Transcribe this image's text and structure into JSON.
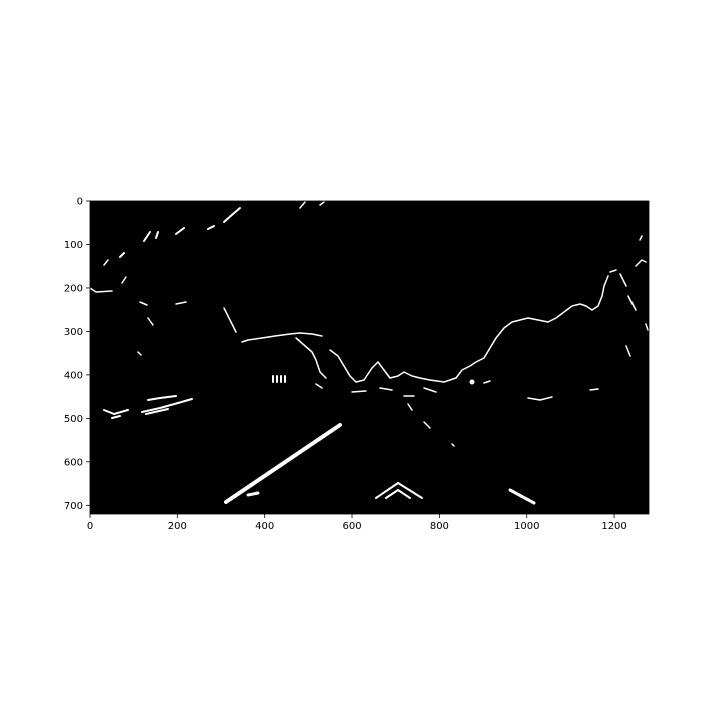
{
  "figure": {
    "background": "#ffffff",
    "image_background": "#000000",
    "edge_color": "#ffffff"
  },
  "chart_data": {
    "type": "image",
    "xlim": [
      0,
      1280
    ],
    "ylim": [
      720,
      0
    ],
    "x_ticks": [
      0,
      200,
      400,
      600,
      800,
      1000,
      1200
    ],
    "y_ticks": [
      0,
      100,
      200,
      300,
      400,
      500,
      600,
      700
    ],
    "x_tick_labels": [
      "0",
      "200",
      "400",
      "600",
      "800",
      "1000",
      "1200"
    ],
    "y_tick_labels": [
      "0",
      "100",
      "200",
      "300",
      "400",
      "500",
      "600",
      "700"
    ]
  }
}
